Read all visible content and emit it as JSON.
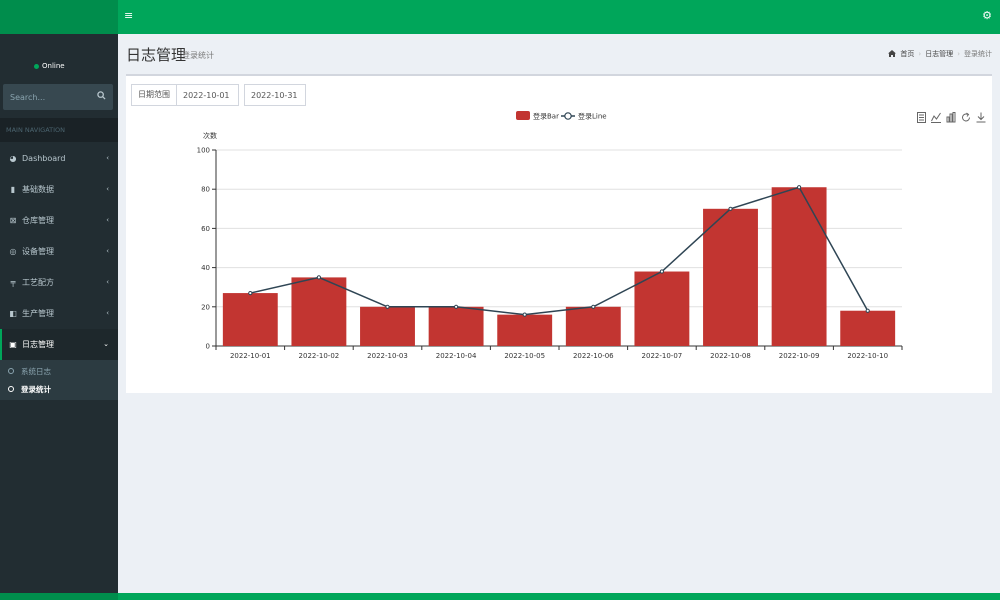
{
  "topbar": {
    "menu_icon": "hamburger-icon",
    "settings_icon": "gears-icon"
  },
  "user": {
    "status": "Online"
  },
  "search": {
    "placeholder": "Search..."
  },
  "nav": {
    "header": "MAIN NAVIGATION",
    "items": [
      {
        "label": "Dashboard",
        "icon": "dashboard-icon"
      },
      {
        "label": "基础数据",
        "icon": "book-icon"
      },
      {
        "label": "仓库管理",
        "icon": "warehouse-icon"
      },
      {
        "label": "设备管理",
        "icon": "device-icon"
      },
      {
        "label": "工艺配方",
        "icon": "formula-icon"
      },
      {
        "label": "生产管理",
        "icon": "production-icon"
      },
      {
        "label": "日志管理",
        "icon": "log-icon"
      }
    ],
    "sub_items": [
      {
        "label": "系统日志"
      },
      {
        "label": "登录统计"
      }
    ]
  },
  "page": {
    "title": "日志管理",
    "subtitle": "登录统计",
    "breadcrumb": {
      "home": "首页",
      "parent": "日志管理",
      "current": "登录统计"
    }
  },
  "filter": {
    "label": "日期范围",
    "start": "2022-10-01",
    "end": "2022-10-31"
  },
  "chart_data": {
    "type": "bar",
    "ylabel": "次数",
    "ylim": [
      0,
      100
    ],
    "yticks": [
      0,
      20,
      40,
      60,
      80,
      100
    ],
    "grid": true,
    "legend_position": "top-center",
    "categories": [
      "2022-10-01",
      "2022-10-02",
      "2022-10-03",
      "2022-10-04",
      "2022-10-05",
      "2022-10-06",
      "2022-10-07",
      "2022-10-08",
      "2022-10-09",
      "2022-10-10"
    ],
    "series": [
      {
        "name": "登录Bar",
        "type": "bar",
        "color": "#c23531",
        "values": [
          27,
          35,
          20,
          20,
          16,
          20,
          38,
          70,
          81,
          18
        ]
      },
      {
        "name": "登录Line",
        "type": "line",
        "color": "#2f4554",
        "values": [
          27,
          35,
          20,
          20,
          16,
          20,
          38,
          70,
          81,
          18
        ]
      }
    ],
    "toolbox": [
      "data-view-icon",
      "line-switch-icon",
      "bar-switch-icon",
      "restore-icon",
      "save-image-icon"
    ]
  }
}
